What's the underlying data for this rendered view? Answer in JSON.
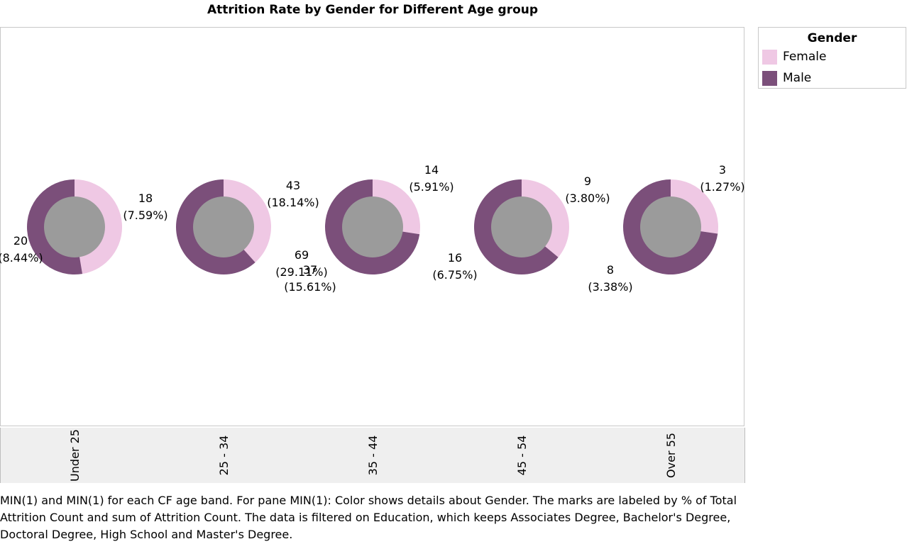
{
  "colors": {
    "female": "#efc8e4",
    "male": "#7b4f7a",
    "hole": "#9b9b9b"
  },
  "legend": {
    "title": "Gender",
    "items": [
      {
        "label": "Female",
        "color": "#efc8e4"
      },
      {
        "label": "Male",
        "color": "#7b4f7a"
      }
    ]
  },
  "caption": "MIN(1) and MIN(1) for each CF age band.  For pane MIN(1):  Color shows details about Gender.  The marks are labeled by % of Total Attrition Count and sum of Attrition Count. The data is filtered on Education, which keeps Associates Degree, Bachelor's Degree, Doctoral Degree, High School and Master's Degree.",
  "chart_data": {
    "type": "pie",
    "title": "Attrition Rate by Gender for Different Age group",
    "categories": [
      "Under 25",
      "25 - 34",
      "35 - 44",
      "45 - 54",
      "Over 55"
    ],
    "series": [
      {
        "name": "Female",
        "values": [
          18,
          43,
          14,
          9,
          3
        ],
        "labels": [
          "7.59%",
          "18.14%",
          "5.91%",
          "3.80%",
          "1.27%"
        ]
      },
      {
        "name": "Male",
        "values": [
          20,
          69,
          37,
          16,
          8
        ],
        "labels": [
          "8.44%",
          "29.11%",
          "15.61%",
          "6.75%",
          "3.38%"
        ]
      }
    ],
    "legend_position": "top-right",
    "donut": true
  }
}
